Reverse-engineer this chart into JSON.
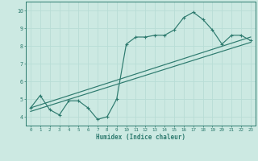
{
  "xlabel": "Humidex (Indice chaleur)",
  "bg_color": "#cce9e2",
  "grid_color": "#b8ddd6",
  "line_color": "#2d7a6e",
  "xlim": [
    -0.5,
    23.5
  ],
  "ylim": [
    3.5,
    10.5
  ],
  "xtick_pos": [
    0,
    1,
    2,
    3,
    4,
    5,
    6,
    7,
    8,
    9,
    10,
    11,
    12,
    13,
    14,
    15,
    16,
    17,
    18,
    19,
    20,
    21,
    22,
    23
  ],
  "ytick_pos": [
    4,
    5,
    6,
    7,
    8,
    9,
    10
  ],
  "xtick_labels": [
    "0",
    "1",
    "2",
    "3",
    "4",
    "5",
    "6",
    "7",
    "8",
    "9",
    "10",
    "11",
    "12",
    "13",
    "14",
    "15",
    "16",
    "17",
    "18",
    "19",
    "20",
    "21",
    "22",
    "23"
  ],
  "ytick_labels": [
    "4",
    "5",
    "6",
    "7",
    "8",
    "9",
    "10"
  ],
  "curve_x": [
    0,
    1,
    2,
    3,
    4,
    5,
    6,
    7,
    8,
    9,
    10,
    11,
    12,
    13,
    14,
    15,
    16,
    17,
    18,
    19,
    20,
    21,
    22,
    23
  ],
  "curve_y": [
    4.5,
    5.2,
    4.4,
    4.1,
    4.9,
    4.9,
    4.5,
    3.85,
    4.0,
    5.0,
    8.1,
    8.5,
    8.5,
    8.6,
    8.6,
    8.9,
    9.6,
    9.9,
    9.5,
    8.9,
    8.1,
    8.6,
    8.6,
    8.3
  ],
  "line1_x": [
    0,
    23
  ],
  "line1_y": [
    4.5,
    8.5
  ],
  "line2_x": [
    0,
    23
  ],
  "line2_y": [
    4.3,
    8.2
  ]
}
